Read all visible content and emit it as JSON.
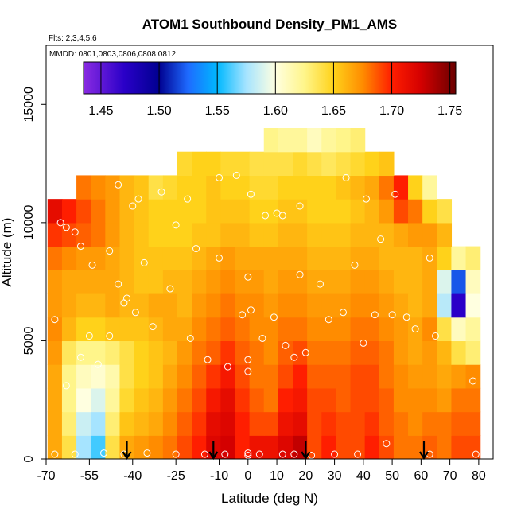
{
  "chart_data": {
    "type": "heatmap",
    "title": "ATOM1 Southbound Density_PM1_AMS",
    "subtitle_flights": "Flts: 2,3,4,5,6",
    "subtitle_dates": "MMDD: 0801,0803,0806,0808,0812",
    "xlabel": "Latitude (deg N)",
    "ylabel": "Altitude (m)",
    "xlim": [
      -70,
      85
    ],
    "ylim": [
      0,
      17500
    ],
    "xticks": [
      -70,
      -55,
      -40,
      -25,
      -10,
      0,
      10,
      20,
      30,
      40,
      50,
      60,
      70,
      80
    ],
    "yticks": [
      0,
      5000,
      10000,
      15000
    ],
    "colorbar": {
      "min": 1.435,
      "max": 1.755,
      "ticks": [
        1.45,
        1.5,
        1.55,
        1.6,
        1.65,
        1.7,
        1.75
      ],
      "tick_labels": [
        "1.45",
        "1.50",
        "1.55",
        "1.60",
        "1.65",
        "1.70",
        "1.75"
      ],
      "stops": [
        {
          "v": 1.435,
          "c": "#8a2be2"
        },
        {
          "v": 1.47,
          "c": "#2a00c8"
        },
        {
          "v": 1.5,
          "c": "#000090"
        },
        {
          "v": 1.525,
          "c": "#1e6bff"
        },
        {
          "v": 1.55,
          "c": "#00b8ff"
        },
        {
          "v": 1.575,
          "c": "#a6e4ff"
        },
        {
          "v": 1.6,
          "c": "#ffffe0"
        },
        {
          "v": 1.625,
          "c": "#fff58a"
        },
        {
          "v": 1.65,
          "c": "#ffd21a"
        },
        {
          "v": 1.675,
          "c": "#ff8c00"
        },
        {
          "v": 1.7,
          "c": "#ff1e00"
        },
        {
          "v": 1.725,
          "c": "#d40000"
        },
        {
          "v": 1.755,
          "c": "#6a0000"
        }
      ]
    },
    "lat_bins": [
      -67,
      -62,
      -57,
      -52,
      -47,
      -42,
      -37,
      -32,
      -27,
      -22,
      -17,
      -12,
      -7,
      -2,
      3,
      8,
      13,
      18,
      23,
      28,
      33,
      38,
      43,
      48,
      53,
      58,
      63,
      68,
      73,
      78
    ],
    "alt_bins": [
      0,
      1000,
      2000,
      3000,
      4000,
      5000,
      6000,
      7000,
      8000,
      9000,
      10000,
      11000,
      12000,
      13000
    ],
    "density_grid": [
      [
        1.665,
        1.64,
        1.575,
        1.56,
        1.64,
        1.665,
        1.67,
        1.675,
        1.68,
        1.69,
        1.7,
        1.72,
        1.725,
        1.7,
        1.71,
        1.71,
        1.72,
        1.73,
        1.69,
        1.7,
        1.69,
        1.69,
        1.7,
        1.69,
        1.68,
        1.68,
        1.685,
        1.68,
        1.69,
        1.69
      ],
      [
        1.665,
        1.63,
        1.585,
        1.575,
        1.63,
        1.655,
        1.66,
        1.665,
        1.675,
        1.685,
        1.695,
        1.715,
        1.72,
        1.7,
        1.69,
        1.69,
        1.71,
        1.715,
        1.69,
        1.695,
        1.69,
        1.69,
        1.695,
        1.685,
        1.68,
        1.675,
        1.68,
        1.68,
        1.685,
        1.685
      ],
      [
        1.665,
        1.625,
        1.6,
        1.59,
        1.62,
        1.645,
        1.655,
        1.66,
        1.67,
        1.68,
        1.69,
        1.705,
        1.715,
        1.695,
        1.685,
        1.68,
        1.7,
        1.705,
        1.69,
        1.69,
        1.685,
        1.69,
        1.69,
        1.685,
        1.675,
        1.675,
        1.675,
        1.67,
        1.68,
        1.68
      ],
      [
        1.665,
        1.625,
        1.61,
        1.605,
        1.615,
        1.64,
        1.65,
        1.655,
        1.665,
        1.675,
        1.685,
        1.695,
        1.705,
        1.69,
        1.68,
        1.68,
        1.69,
        1.7,
        1.685,
        1.685,
        1.685,
        1.69,
        1.69,
        1.68,
        1.675,
        1.67,
        1.67,
        1.665,
        1.67,
        1.675
      ],
      [
        1.67,
        1.635,
        1.625,
        1.625,
        1.63,
        1.64,
        1.65,
        1.655,
        1.66,
        1.67,
        1.68,
        1.685,
        1.695,
        1.685,
        1.68,
        1.675,
        1.685,
        1.69,
        1.68,
        1.68,
        1.68,
        1.685,
        1.685,
        1.68,
        1.67,
        1.665,
        1.67,
        1.66,
        1.64,
        1.63
      ],
      [
        1.675,
        1.66,
        1.65,
        1.65,
        1.655,
        1.655,
        1.655,
        1.66,
        1.665,
        1.665,
        1.675,
        1.68,
        1.685,
        1.68,
        1.675,
        1.675,
        1.68,
        1.68,
        1.675,
        1.675,
        1.675,
        1.68,
        1.68,
        1.675,
        1.67,
        1.665,
        1.675,
        1.64,
        1.61,
        1.62
      ],
      [
        1.67,
        1.665,
        1.66,
        1.66,
        1.665,
        1.66,
        1.66,
        1.665,
        1.665,
        1.66,
        1.67,
        1.675,
        1.68,
        1.675,
        1.675,
        1.67,
        1.675,
        1.675,
        1.67,
        1.67,
        1.67,
        1.675,
        1.675,
        1.67,
        1.665,
        1.66,
        1.665,
        1.58,
        1.47,
        1.6
      ],
      [
        1.67,
        1.665,
        1.665,
        1.665,
        1.665,
        1.66,
        1.655,
        1.655,
        1.66,
        1.66,
        1.665,
        1.67,
        1.675,
        1.67,
        1.67,
        1.665,
        1.67,
        1.67,
        1.665,
        1.665,
        1.665,
        1.67,
        1.67,
        1.665,
        1.66,
        1.66,
        1.665,
        1.59,
        1.52,
        1.61
      ],
      [
        1.68,
        1.675,
        1.67,
        1.67,
        1.665,
        1.66,
        1.655,
        1.655,
        1.655,
        1.655,
        1.66,
        1.665,
        1.67,
        1.665,
        1.665,
        1.665,
        1.665,
        1.665,
        1.66,
        1.66,
        1.66,
        1.665,
        1.665,
        1.66,
        1.66,
        1.66,
        1.665,
        1.65,
        1.62,
        1.63
      ],
      [
        1.695,
        1.69,
        1.685,
        1.68,
        1.67,
        1.66,
        1.655,
        1.65,
        1.65,
        1.65,
        1.655,
        1.655,
        1.66,
        1.66,
        1.655,
        1.655,
        1.66,
        1.66,
        1.655,
        1.655,
        1.655,
        1.66,
        1.66,
        1.66,
        1.665,
        1.67,
        1.67,
        1.66,
        null,
        null
      ],
      [
        1.715,
        1.7,
        1.69,
        1.68,
        1.67,
        1.66,
        1.655,
        1.65,
        1.65,
        1.65,
        1.65,
        1.655,
        1.655,
        1.655,
        1.65,
        1.65,
        1.655,
        1.655,
        1.65,
        1.65,
        1.65,
        1.655,
        1.66,
        1.67,
        1.69,
        1.68,
        1.65,
        1.64,
        null,
        null
      ],
      [
        null,
        null,
        1.68,
        1.675,
        1.67,
        1.66,
        1.655,
        1.64,
        1.645,
        1.65,
        1.65,
        1.655,
        1.65,
        1.65,
        1.645,
        1.645,
        1.65,
        1.65,
        1.65,
        1.65,
        1.655,
        1.66,
        1.665,
        1.68,
        1.7,
        1.65,
        1.62,
        null,
        null,
        null
      ],
      [
        null,
        null,
        null,
        null,
        null,
        null,
        null,
        null,
        null,
        1.645,
        1.65,
        1.65,
        1.645,
        1.645,
        1.64,
        1.64,
        1.64,
        1.645,
        1.64,
        1.635,
        1.64,
        1.645,
        1.65,
        1.655,
        null,
        null,
        null,
        null,
        null,
        null
      ],
      [
        null,
        null,
        null,
        null,
        null,
        null,
        null,
        null,
        null,
        null,
        null,
        null,
        null,
        null,
        null,
        1.625,
        1.62,
        1.62,
        1.61,
        1.62,
        1.625,
        1.63,
        null,
        null,
        null,
        null,
        null,
        null,
        null,
        null
      ]
    ],
    "arrows_lat": [
      -42,
      -12,
      20,
      61
    ],
    "sample_points": [
      [
        -67,
        200
      ],
      [
        -60,
        200
      ],
      [
        -50,
        250
      ],
      [
        -43,
        200
      ],
      [
        -35,
        250
      ],
      [
        -25,
        200
      ],
      [
        -15,
        200
      ],
      [
        -8,
        200
      ],
      [
        0,
        250
      ],
      [
        0,
        150
      ],
      [
        4,
        200
      ],
      [
        12,
        200
      ],
      [
        16,
        200
      ],
      [
        22,
        150
      ],
      [
        30,
        200
      ],
      [
        38,
        200
      ],
      [
        48,
        650
      ],
      [
        63,
        200
      ],
      [
        79,
        200
      ],
      [
        -67,
        5900
      ],
      [
        -63,
        3100
      ],
      [
        -58,
        4300
      ],
      [
        -55,
        5200
      ],
      [
        -52,
        4000
      ],
      [
        -48,
        5200
      ],
      [
        -43,
        6600
      ],
      [
        -39,
        6200
      ],
      [
        -33,
        5600
      ],
      [
        -27,
        7200
      ],
      [
        -20,
        5100
      ],
      [
        -14,
        4200
      ],
      [
        -7,
        3900
      ],
      [
        -2,
        6100
      ],
      [
        0,
        3700
      ],
      [
        0,
        4200
      ],
      [
        1,
        6300
      ],
      [
        5,
        5100
      ],
      [
        9,
        6000
      ],
      [
        13,
        4800
      ],
      [
        16,
        4300
      ],
      [
        20,
        4500
      ],
      [
        28,
        5900
      ],
      [
        33,
        6200
      ],
      [
        40,
        4900
      ],
      [
        44,
        6100
      ],
      [
        50,
        6100
      ],
      [
        55,
        6000
      ],
      [
        58,
        5500
      ],
      [
        65,
        5200
      ],
      [
        78,
        3300
      ],
      [
        -65,
        10000
      ],
      [
        -63,
        9800
      ],
      [
        -60,
        9600
      ],
      [
        -58,
        9000
      ],
      [
        -54,
        8200
      ],
      [
        -48,
        8800
      ],
      [
        -45,
        7400
      ],
      [
        -42,
        6800
      ],
      [
        -36,
        8300
      ],
      [
        -25,
        9900
      ],
      [
        -18,
        8900
      ],
      [
        -10,
        8500
      ],
      [
        0,
        7700
      ],
      [
        1,
        11200
      ],
      [
        6,
        10300
      ],
      [
        12,
        10300
      ],
      [
        18,
        7800
      ],
      [
        25,
        7400
      ],
      [
        37,
        8200
      ],
      [
        46,
        9300
      ],
      [
        51,
        11200
      ],
      [
        63,
        8500
      ],
      [
        75,
        9800
      ],
      [
        -45,
        11600
      ],
      [
        -40,
        10700
      ],
      [
        -38,
        11000
      ],
      [
        -30,
        11300
      ],
      [
        -21,
        11000
      ],
      [
        -10,
        11900
      ],
      [
        -4,
        12000
      ],
      [
        10,
        10400
      ],
      [
        18,
        10700
      ],
      [
        34,
        11900
      ],
      [
        41,
        11000
      ]
    ]
  }
}
